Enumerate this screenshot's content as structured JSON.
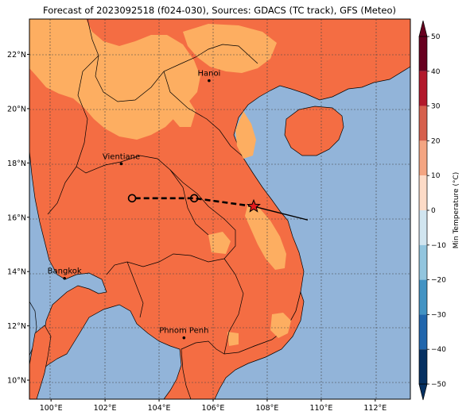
{
  "title": "Forecast of 2023092518 (f024-030), Sources: GDACS (TC track), GFS (Meteo)",
  "colorbar": {
    "label": "Min Temperature (°C)",
    "ticks": [
      "50",
      "40",
      "30",
      "20",
      "10",
      "0",
      "−10",
      "−20",
      "−30",
      "−40",
      "−50"
    ],
    "colors": [
      "#67001f",
      "#b2182b",
      "#d6604d",
      "#f4a582",
      "#fddbc7",
      "#f7f7f7",
      "#d1e5f0",
      "#92c5de",
      "#4393c3",
      "#2166ac",
      "#053061"
    ]
  },
  "map": {
    "lon_range": [
      99.2,
      113.3
    ],
    "lat_range": [
      9.3,
      23.3
    ],
    "lat_ticks": [
      "22°N",
      "20°N",
      "18°N",
      "16°N",
      "14°N",
      "12°N",
      "10°N"
    ],
    "lon_ticks": [
      "100°E",
      "102°E",
      "104°E",
      "106°E",
      "108°E",
      "110°E",
      "112°E"
    ],
    "cities": [
      {
        "name": "Hanoi",
        "lon": 105.85,
        "lat": 21.03
      },
      {
        "name": "Vientiane",
        "lon": 102.6,
        "lat": 17.97
      },
      {
        "name": "Bangkok",
        "lon": 100.5,
        "lat": 13.75
      },
      {
        "name": "Phnom Penh",
        "lon": 104.92,
        "lat": 11.56
      }
    ],
    "forecast_track": [
      {
        "lon": 107.5,
        "lat": 16.4
      },
      {
        "lon": 105.3,
        "lat": 16.7
      },
      {
        "lon": 103.0,
        "lat": 16.7
      }
    ],
    "observed_track": [
      {
        "lon": 109.5,
        "lat": 15.9
      },
      {
        "lon": 108.3,
        "lat": 16.2
      },
      {
        "lon": 107.5,
        "lat": 16.4
      }
    ],
    "current_position": {
      "lon": 107.5,
      "lat": 16.4
    },
    "colors": {
      "sea": "#92b4d9",
      "land_warm": "#f46d43",
      "land_cool": "#fdae61",
      "border": "#000000",
      "grid": "#444444"
    }
  }
}
